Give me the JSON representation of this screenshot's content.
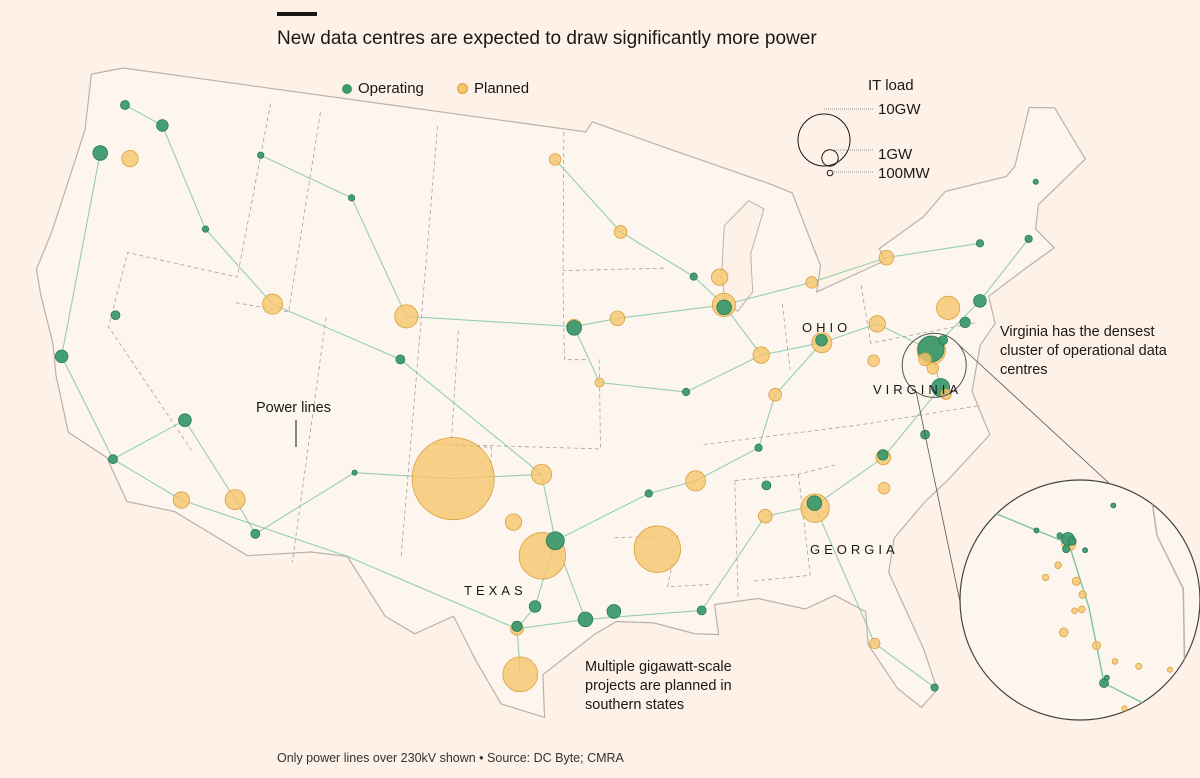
{
  "title": "New data centres are expected to draw significantly more power",
  "legend": {
    "operating": "Operating",
    "planned": "Planned"
  },
  "size_legend": {
    "title": "IT load",
    "labels": [
      "10GW",
      "1GW",
      "100MW"
    ],
    "values_mw": [
      10000,
      1000,
      100
    ]
  },
  "colors": {
    "operating": "#3d9a6f",
    "operating_stroke": "#2b7a55",
    "planned": "#f6c56c",
    "planned_stroke": "#d9a03c",
    "power_lines": "#7cc4a3",
    "background": "#fdf1e8"
  },
  "state_labels": {
    "ohio": "OHIO",
    "virginia": "VIRGINIA",
    "georgia": "GEORGIA",
    "texas": "TEXAS"
  },
  "annotations": {
    "power_lines": "Power lines",
    "virginia": "Virginia has the densest cluster of operational data centres",
    "south": "Multiple gigawatt-scale projects are planned in southern states"
  },
  "footer": "Only power lines over 230kV shown • Source: DC Byte; CMRA",
  "sites": [
    {
      "lon": -101.8,
      "lat": 35.2,
      "mw": 25000,
      "status": "planned"
    },
    {
      "lon": -97.4,
      "lat": 32.3,
      "mw": 8000,
      "status": "planned"
    },
    {
      "lon": -92.0,
      "lat": 32.5,
      "mw": 8000,
      "status": "planned"
    },
    {
      "lon": -98.3,
      "lat": 27.6,
      "mw": 4500,
      "status": "planned"
    },
    {
      "lon": -104.8,
      "lat": 41.4,
      "mw": 2000,
      "status": "planned"
    },
    {
      "lon": -111.9,
      "lat": 41.2,
      "mw": 1500,
      "status": "planned"
    },
    {
      "lon": -112.1,
      "lat": 33.4,
      "mw": 1500,
      "status": "planned"
    },
    {
      "lon": -114.6,
      "lat": 33.0,
      "mw": 1000,
      "status": "planned"
    },
    {
      "lon": -97.5,
      "lat": 35.5,
      "mw": 1500,
      "status": "planned"
    },
    {
      "lon": -98.8,
      "lat": 33.6,
      "mw": 1000,
      "status": "planned"
    },
    {
      "lon": -84.4,
      "lat": 33.6,
      "mw": 3000,
      "status": "planned"
    },
    {
      "lon": -84.4,
      "lat": 33.8,
      "mw": 800,
      "status": "operating"
    },
    {
      "lon": -83.0,
      "lat": 40.0,
      "mw": 1500,
      "status": "planned"
    },
    {
      "lon": -83.0,
      "lat": 40.1,
      "mw": 500,
      "status": "operating"
    },
    {
      "lon": -87.9,
      "lat": 41.9,
      "mw": 2000,
      "status": "planned"
    },
    {
      "lon": -87.9,
      "lat": 41.8,
      "mw": 800,
      "status": "operating"
    },
    {
      "lon": -77.5,
      "lat": 39.0,
      "mw": 3000,
      "status": "planned"
    },
    {
      "lon": -77.5,
      "lat": 39.05,
      "mw": 2500,
      "status": "operating"
    },
    {
      "lon": -77.4,
      "lat": 37.5,
      "mw": 1200,
      "status": "operating"
    },
    {
      "lon": -76.2,
      "lat": 40.5,
      "mw": 2000,
      "status": "planned"
    },
    {
      "lon": -74.5,
      "lat": 40.5,
      "mw": 600,
      "status": "operating"
    },
    {
      "lon": -71.2,
      "lat": 42.4,
      "mw": 200,
      "status": "operating"
    },
    {
      "lon": -96.8,
      "lat": 32.9,
      "mw": 1200,
      "status": "operating"
    },
    {
      "lon": -95.4,
      "lat": 29.8,
      "mw": 800,
      "status": "operating"
    },
    {
      "lon": -98.5,
      "lat": 29.4,
      "mw": 600,
      "status": "planned"
    },
    {
      "lon": -98.5,
      "lat": 29.5,
      "mw": 400,
      "status": "operating"
    },
    {
      "lon": -97.7,
      "lat": 30.3,
      "mw": 500,
      "status": "operating"
    },
    {
      "lon": -104.9,
      "lat": 39.7,
      "mw": 300,
      "status": "operating"
    },
    {
      "lon": -122.9,
      "lat": 45.5,
      "mw": 800,
      "status": "operating"
    },
    {
      "lon": -121.2,
      "lat": 45.6,
      "mw": 1000,
      "status": "planned"
    },
    {
      "lon": -122.3,
      "lat": 47.6,
      "mw": 300,
      "status": "operating"
    },
    {
      "lon": -119.9,
      "lat": 47.2,
      "mw": 500,
      "status": "operating"
    },
    {
      "lon": -119.8,
      "lat": 39.5,
      "mw": 300,
      "status": "operating"
    },
    {
      "lon": -121.9,
      "lat": 37.4,
      "mw": 600,
      "status": "operating"
    },
    {
      "lon": -118.2,
      "lat": 34.0,
      "mw": 300,
      "status": "operating"
    },
    {
      "lon": -95.9,
      "lat": 41.3,
      "mw": 800,
      "status": "planned"
    },
    {
      "lon": -95.9,
      "lat": 41.25,
      "mw": 800,
      "status": "operating"
    },
    {
      "lon": -93.6,
      "lat": 41.6,
      "mw": 800,
      "status": "planned"
    },
    {
      "lon": -93.3,
      "lat": 45.0,
      "mw": 600,
      "status": "planned"
    },
    {
      "lon": -94.6,
      "lat": 39.1,
      "mw": 300,
      "status": "planned"
    },
    {
      "lon": -86.8,
      "lat": 36.2,
      "mw": 200,
      "status": "operating"
    },
    {
      "lon": -90.0,
      "lat": 35.1,
      "mw": 1500,
      "status": "planned"
    },
    {
      "lon": -80.8,
      "lat": 35.2,
      "mw": 800,
      "status": "planned"
    },
    {
      "lon": -80.8,
      "lat": 35.3,
      "mw": 400,
      "status": "operating"
    },
    {
      "lon": -78.6,
      "lat": 35.8,
      "mw": 300,
      "status": "operating"
    },
    {
      "lon": -82.5,
      "lat": 28.0,
      "mw": 400,
      "status": "planned"
    },
    {
      "lon": -80.2,
      "lat": 25.9,
      "mw": 200,
      "status": "operating"
    },
    {
      "lon": -86.2,
      "lat": 39.8,
      "mw": 1000,
      "status": "planned"
    },
    {
      "lon": -83.1,
      "lat": 42.4,
      "mw": 500,
      "status": "planned"
    },
    {
      "lon": -80.0,
      "lat": 40.4,
      "mw": 1000,
      "status": "planned"
    },
    {
      "lon": -78.9,
      "lat": 42.9,
      "mw": 800,
      "status": "planned"
    },
    {
      "lon": -73.8,
      "lat": 42.7,
      "mw": 200,
      "status": "operating"
    },
    {
      "lon": -70.0,
      "lat": 44.5,
      "mw": 100,
      "status": "operating"
    },
    {
      "lon": -88.0,
      "lat": 43.0,
      "mw": 1000,
      "status": "planned"
    },
    {
      "lon": -97.0,
      "lat": 47.9,
      "mw": 500,
      "status": "planned"
    },
    {
      "lon": -108.5,
      "lat": 45.8,
      "mw": 150,
      "status": "operating"
    },
    {
      "lon": -106.6,
      "lat": 35.1,
      "mw": 100,
      "status": "operating"
    },
    {
      "lon": -86.8,
      "lat": 33.5,
      "mw": 700,
      "status": "planned"
    },
    {
      "lon": -86.6,
      "lat": 34.7,
      "mw": 300,
      "status": "operating"
    },
    {
      "lon": -81.0,
      "lat": 34.0,
      "mw": 500,
      "status": "planned"
    },
    {
      "lon": -85.7,
      "lat": 38.2,
      "mw": 600,
      "status": "planned"
    },
    {
      "lon": -80.5,
      "lat": 39.0,
      "mw": 500,
      "status": "planned"
    },
    {
      "lon": -90.1,
      "lat": 30.0,
      "mw": 300,
      "status": "operating"
    },
    {
      "lon": -94.1,
      "lat": 30.1,
      "mw": 700,
      "status": "operating"
    },
    {
      "lon": -92.3,
      "lat": 34.7,
      "mw": 200,
      "status": "operating"
    },
    {
      "lon": -90.2,
      "lat": 38.6,
      "mw": 200,
      "status": "operating"
    },
    {
      "lon": -89.4,
      "lat": 43.1,
      "mw": 200,
      "status": "operating"
    },
    {
      "lon": -114.0,
      "lat": 46.9,
      "mw": 150,
      "status": "operating"
    },
    {
      "lon": -116.2,
      "lat": 43.6,
      "mw": 150,
      "status": "operating"
    },
    {
      "lon": -115.2,
      "lat": 36.1,
      "mw": 600,
      "status": "operating"
    },
    {
      "lon": -110.9,
      "lat": 32.2,
      "mw": 300,
      "status": "operating"
    },
    {
      "lon": -77.9,
      "lat": 38.7,
      "mw": 600,
      "status": "planned"
    },
    {
      "lon": -77.6,
      "lat": 38.3,
      "mw": 500,
      "status": "planned"
    },
    {
      "lon": -77.2,
      "lat": 37.2,
      "mw": 400,
      "status": "planned"
    },
    {
      "lon": -76.8,
      "lat": 39.3,
      "mw": 300,
      "status": "operating"
    },
    {
      "lon": -75.5,
      "lat": 39.8,
      "mw": 400,
      "status": "operating"
    }
  ]
}
